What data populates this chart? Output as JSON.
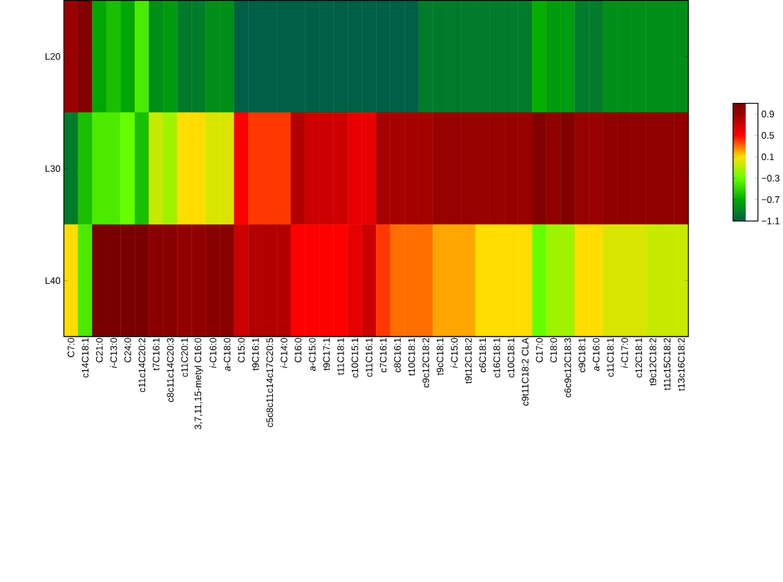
{
  "chart_data": {
    "type": "heatmap",
    "categories": [
      "C7:0",
      "c14C18:1",
      "C21:0",
      "*i*-C13:0",
      "C24:0",
      "c11c14C20:2",
      "t7C16:1",
      "c8c11c14C20:3",
      "c11C20:1",
      "3,7,11,15-metyl C16:0",
      "*i*-C16:0",
      "*a*-C18:0",
      "C15:0",
      "t9C16:1",
      "c5c8c11c14c17C20:5",
      "*i*-C14:0",
      "C16:0",
      "*a*-C15:0",
      "t9C17:1",
      "t11C18:1",
      "c10C15:1",
      "c11C16:1",
      "c7C16:1",
      "c8C16:1",
      "t10C18:1",
      "c9c12C18:2",
      "t9cC18:1",
      "*i*-C15:0",
      "t9t12C18:2",
      "c6C18:1",
      "c16C18:1",
      "c10C18:1",
      "c9t11C18:2 CLA",
      "C17:0",
      "C18:0",
      "c6c9c12C18:3",
      "c9C18:1",
      "*a*-C16:0",
      "c11C18:1",
      "*i*-C17:0",
      "c12C18:1",
      "t9c12C18:2",
      "t11c15C18:2",
      "t13c16C18:2"
    ],
    "y_categories": [
      "L20",
      "L30",
      "L40"
    ],
    "cells": [
      [
        0.9,
        1.05,
        -0.72,
        -0.6,
        -0.72,
        -0.4,
        -0.85,
        -0.78,
        -0.95,
        -0.95,
        -0.85,
        -0.85,
        -1.1,
        -1.1,
        -1.1,
        -1.1,
        -1.1,
        -1.1,
        -1.1,
        -1.1,
        -1.1,
        -1.1,
        -1.1,
        -1.1,
        -1.1,
        -0.95,
        -0.95,
        -0.95,
        -0.95,
        -0.95,
        -0.95,
        -0.95,
        -0.95,
        -0.68,
        -0.78,
        -0.78,
        -0.95,
        -0.95,
        -0.85,
        -0.85,
        -0.85,
        -0.85,
        -0.85,
        -0.85
      ],
      [
        -0.95,
        -0.6,
        -0.4,
        -0.4,
        -0.3,
        -0.6,
        -0.05,
        -0.15,
        0.1,
        0.1,
        0.0,
        0.0,
        0.5,
        0.4,
        0.4,
        0.4,
        0.8,
        0.7,
        0.7,
        0.7,
        0.6,
        0.6,
        0.85,
        0.85,
        0.85,
        0.85,
        0.9,
        0.9,
        0.9,
        0.9,
        0.9,
        0.9,
        0.9,
        1.05,
        0.95,
        1.05,
        0.9,
        0.9,
        0.95,
        0.95,
        0.95,
        0.95,
        0.95,
        0.95
      ],
      [
        0.1,
        -0.4,
        1.1,
        1.1,
        1.1,
        1.1,
        1.0,
        1.0,
        0.95,
        0.95,
        1.0,
        1.0,
        0.7,
        0.8,
        0.8,
        0.8,
        0.5,
        0.5,
        0.5,
        0.5,
        0.6,
        0.7,
        0.4,
        0.3,
        0.3,
        0.3,
        0.2,
        0.2,
        0.2,
        0.1,
        0.1,
        0.1,
        0.1,
        -0.3,
        -0.15,
        -0.15,
        0.1,
        0.1,
        0.0,
        0.0,
        0.0,
        -0.05,
        -0.05,
        -0.05
      ]
    ],
    "clim": [
      -1.1,
      1.1
    ],
    "cticks": [
      {
        "value": -1.1,
        "label": "−1.1"
      },
      {
        "value": -0.7,
        "label": "−0.7"
      },
      {
        "value": -0.3,
        "label": "−0.3"
      },
      0.1,
      0.5,
      0.9
    ]
  }
}
